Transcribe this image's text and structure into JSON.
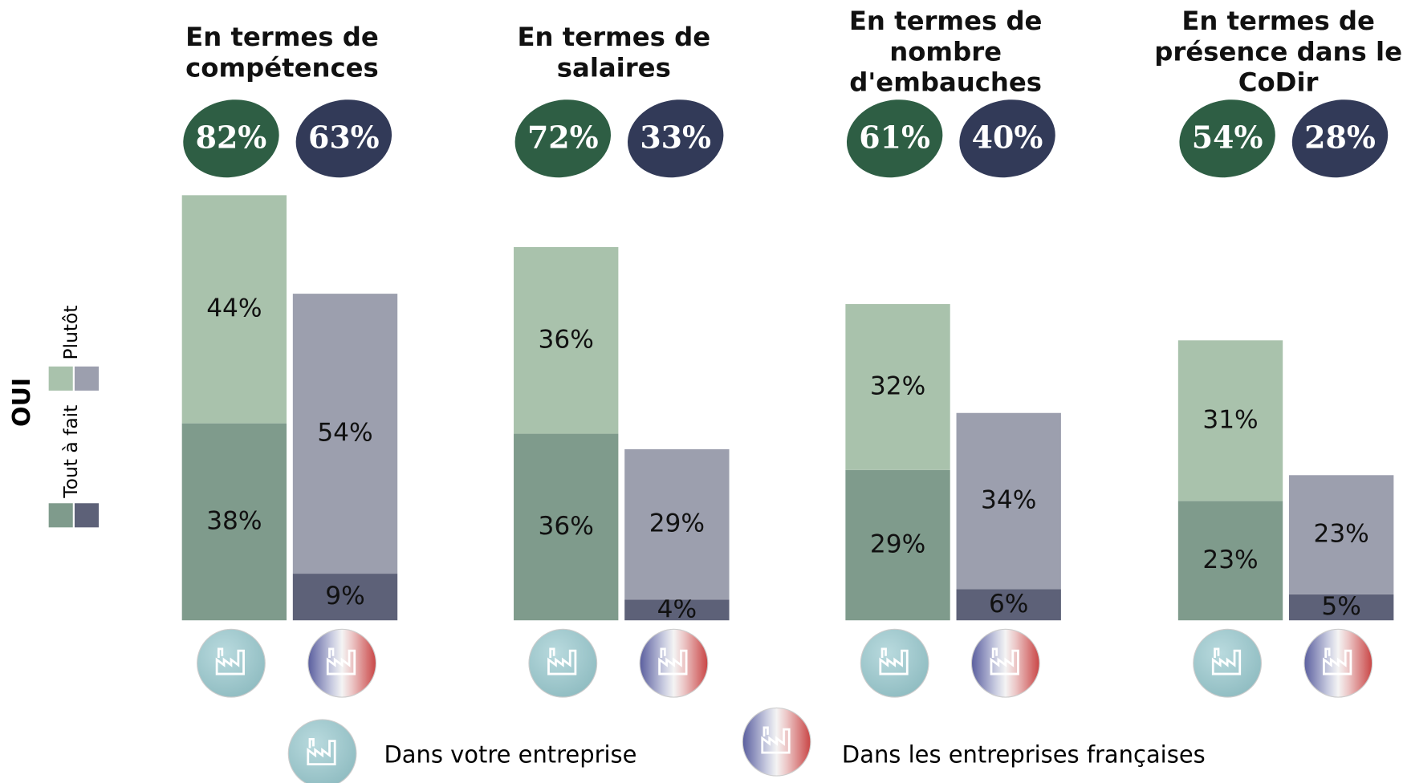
{
  "chart_data": {
    "type": "stacked_bar",
    "groups": [
      {
        "title": [
          "En termes de",
          "compétences"
        ]
      },
      {
        "title": [
          "En termes de",
          "salaires"
        ]
      },
      {
        "title": [
          "En termes de",
          "nombre",
          "d'embauches"
        ]
      },
      {
        "title": [
          "En termes de",
          "présence dans le",
          "CoDir"
        ]
      }
    ],
    "series": [
      {
        "name": "Tout à fait",
        "bar": 0,
        "color": "#7f9b8c",
        "values": [
          38,
          36,
          29,
          23
        ],
        "value_labels": [
          "38%",
          "36%",
          "29%",
          "23%"
        ]
      },
      {
        "name": "Plutôt",
        "bar": 0,
        "color": "#a9c2ac",
        "values": [
          44,
          36,
          32,
          31
        ],
        "value_labels": [
          "44%",
          "36%",
          "32%",
          "31%"
        ]
      },
      {
        "name": "Tout à fait",
        "bar": 1,
        "color": "#5d6178",
        "values": [
          9,
          4,
          6,
          5
        ],
        "value_labels": [
          "9%",
          "4%",
          "6%",
          "5%"
        ]
      },
      {
        "name": "Plutôt",
        "bar": 1,
        "color": "#9c9fae",
        "values": [
          54,
          29,
          34,
          23
        ],
        "value_labels": [
          "54%",
          "29%",
          "34%",
          "23%"
        ]
      }
    ],
    "totals": [
      {
        "color": "#2e5e44",
        "values": [
          82,
          72,
          61,
          54
        ],
        "value_labels": [
          "82%",
          "72%",
          "61%",
          "54%"
        ]
      },
      {
        "color": "#323a58",
        "values": [
          63,
          33,
          40,
          28
        ],
        "value_labels": [
          "63%",
          "33%",
          "40%",
          "28%"
        ]
      }
    ],
    "legend_title": "OUI",
    "bars": [
      "Dans votre entreprise",
      "Dans les entreprises françaises"
    ]
  }
}
